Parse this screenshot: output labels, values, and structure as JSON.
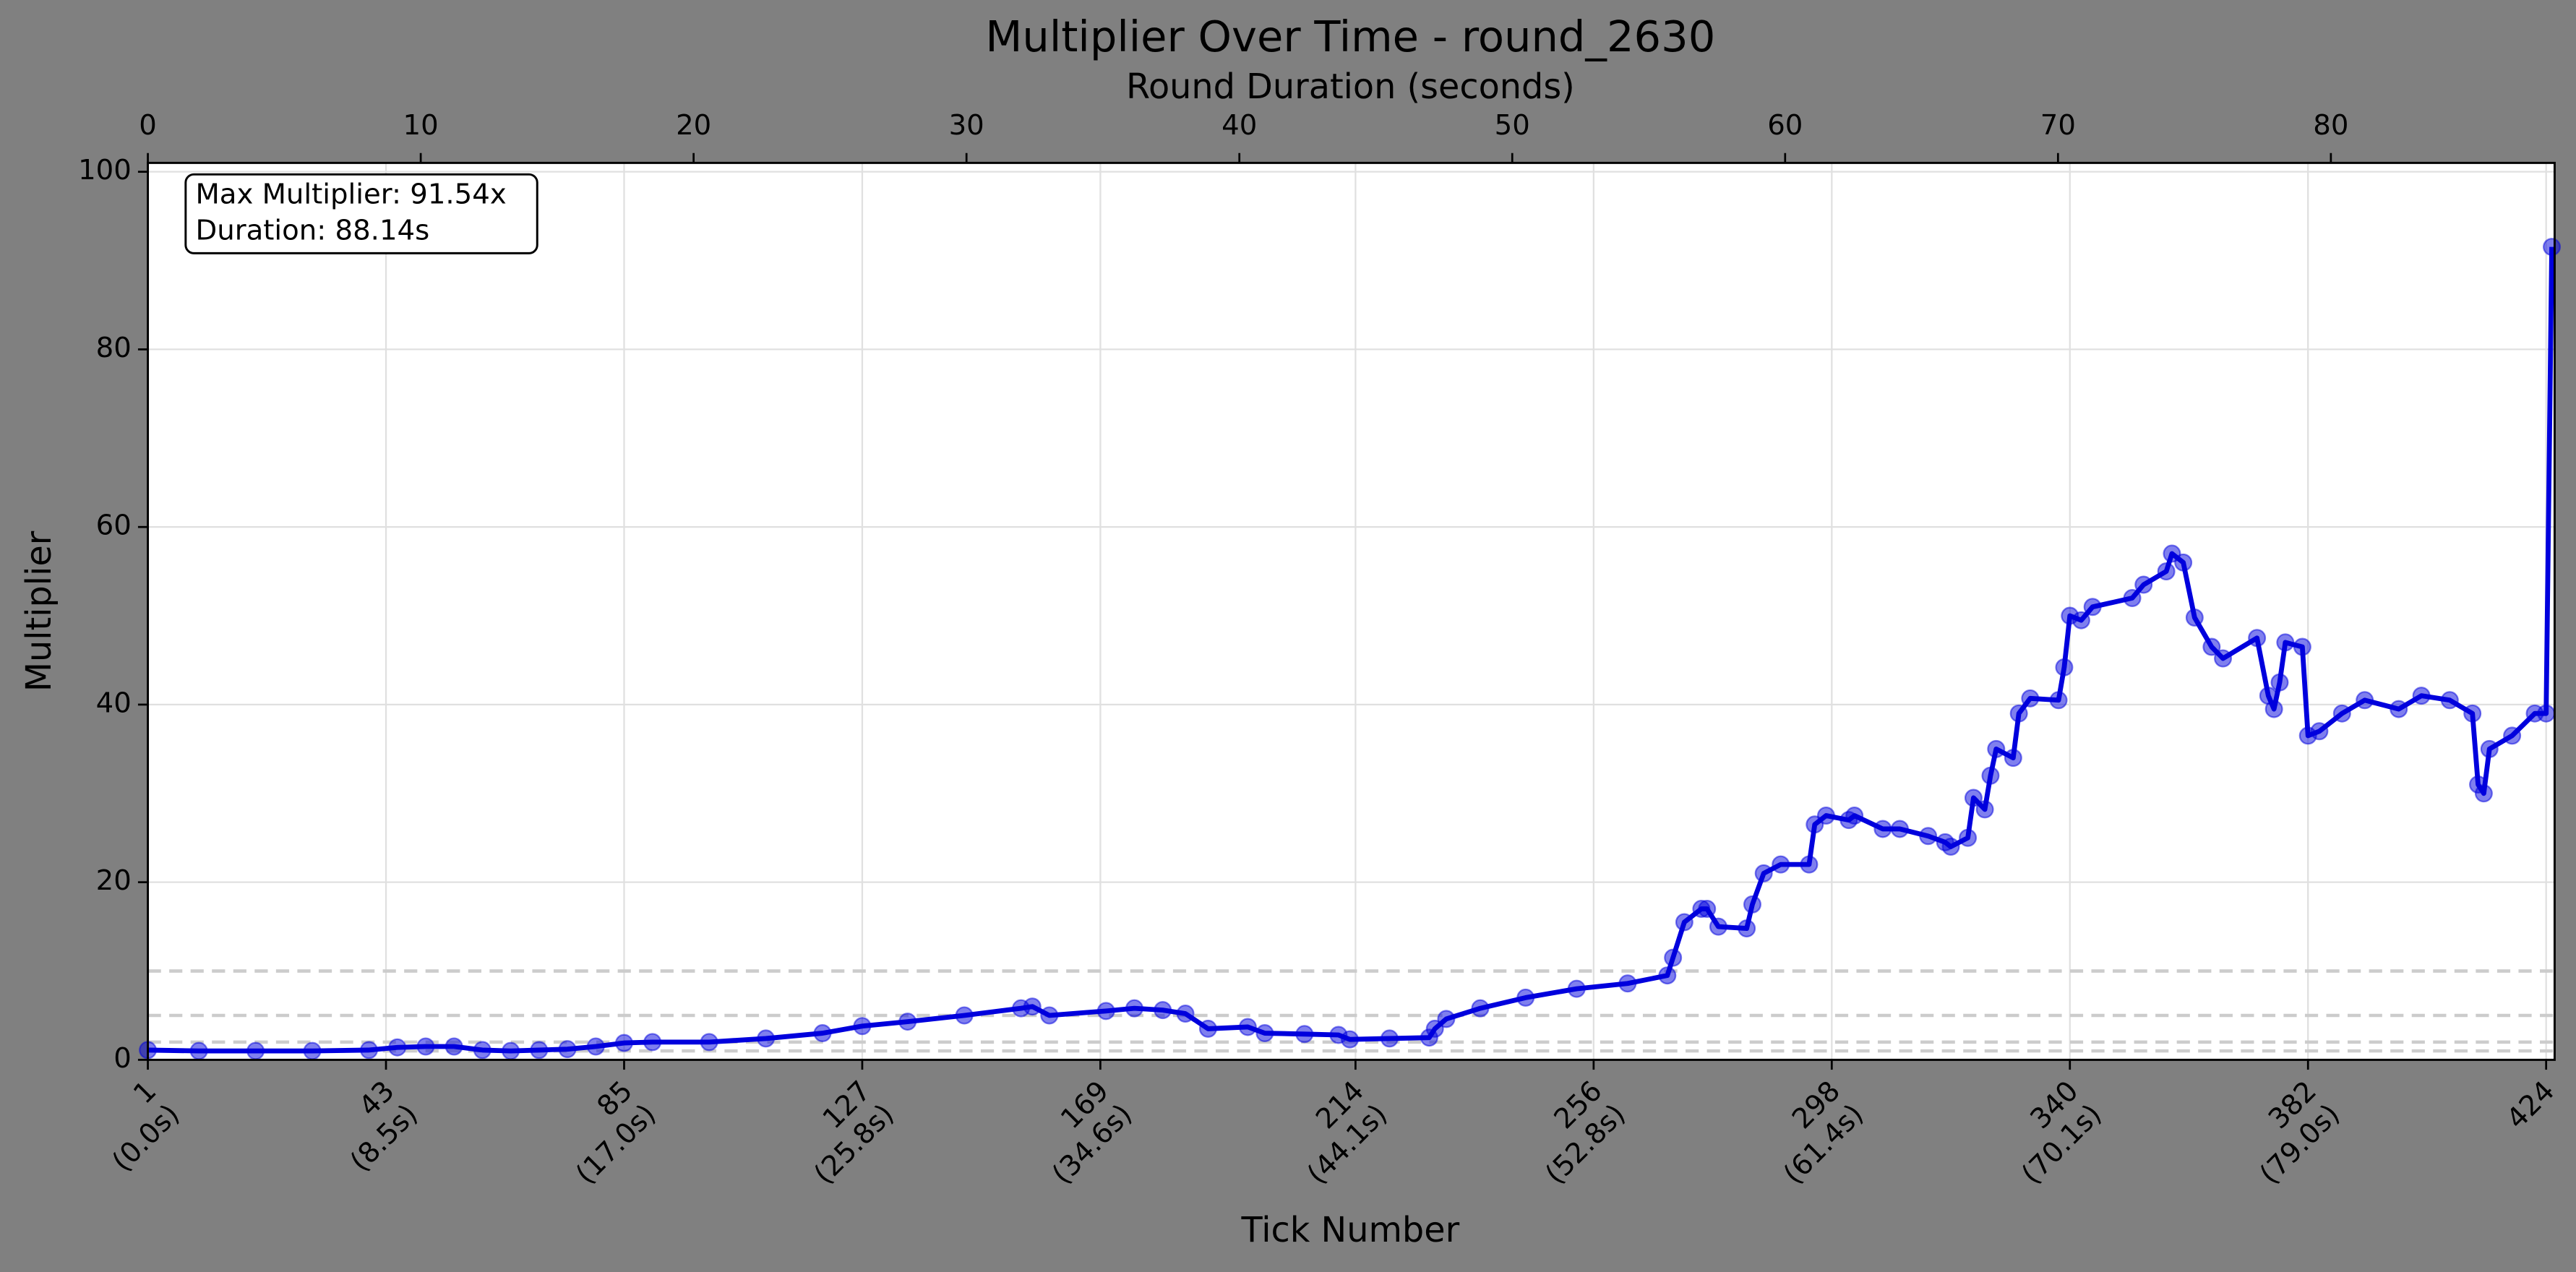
{
  "chart_data": {
    "type": "line",
    "title": "Multiplier Over Time - round_2630",
    "xlabel": "Tick Number",
    "ylabel": "Multiplier",
    "x2label": "Round Duration (seconds)",
    "annotation": [
      "Max Multiplier: 91.54x",
      "Duration: 88.14s"
    ],
    "xlim": [
      1,
      425.5
    ],
    "xticks": [
      {
        "value": 1,
        "label": "1\n(0.0s)"
      },
      {
        "value": 43,
        "label": "43\n(8.5s)"
      },
      {
        "value": 85,
        "label": "85\n(17.0s)"
      },
      {
        "value": 127,
        "label": "127\n(25.8s)"
      },
      {
        "value": 169,
        "label": "169\n(34.6s)"
      },
      {
        "value": 214,
        "label": "214\n(44.1s)"
      },
      {
        "value": 256,
        "label": "256\n(52.8s)"
      },
      {
        "value": 298,
        "label": "298\n(61.4s)"
      },
      {
        "value": 340,
        "label": "340\n(70.1s)"
      },
      {
        "value": 382,
        "label": "382\n(79.0s)"
      },
      {
        "value": 424,
        "label": "424"
      }
    ],
    "x2lim": [
      0,
      88.2
    ],
    "x2ticks": [
      0,
      10,
      20,
      30,
      40,
      50,
      60,
      70,
      80
    ],
    "ylim": [
      0,
      101
    ],
    "yticks": [
      0,
      20,
      40,
      60,
      80,
      100
    ],
    "grid": true,
    "threshold_lines": [
      1,
      2,
      5,
      10
    ],
    "series": [
      {
        "name": "Multiplier",
        "color": "#0000dd",
        "x": [
          1,
          10,
          20,
          30,
          40,
          45,
          50,
          55,
          60,
          65,
          70,
          75,
          80,
          85,
          90,
          100,
          110,
          120,
          127,
          135,
          145,
          155,
          157,
          160,
          170,
          175,
          180,
          184,
          188,
          195,
          198,
          205,
          211,
          213,
          220,
          227,
          228,
          230,
          236,
          244,
          253,
          262,
          269,
          270,
          272,
          275,
          276,
          278,
          283,
          284,
          286,
          289,
          294,
          295,
          297,
          301,
          302,
          307,
          310,
          315,
          318,
          319,
          322,
          323,
          325,
          326,
          327,
          330,
          331,
          333,
          338,
          339,
          340,
          342,
          344,
          351,
          353,
          357,
          358,
          360,
          362,
          365,
          367,
          373,
          375,
          376,
          377,
          378,
          381,
          382,
          384,
          388,
          392,
          398,
          402,
          407,
          411,
          412,
          413,
          414,
          418,
          422,
          424,
          425
        ],
        "values": [
          1.1,
          1.0,
          1.0,
          1.0,
          1.1,
          1.4,
          1.5,
          1.5,
          1.1,
          1.0,
          1.1,
          1.2,
          1.5,
          1.9,
          2.0,
          2.0,
          2.4,
          3.0,
          3.8,
          4.3,
          5.0,
          5.8,
          6.0,
          5.0,
          5.5,
          5.8,
          5.6,
          5.2,
          3.5,
          3.7,
          3.0,
          2.9,
          2.8,
          2.3,
          2.4,
          2.5,
          3.5,
          4.6,
          5.8,
          7.0,
          8.0,
          8.6,
          9.5,
          11.5,
          15.5,
          17.0,
          17.0,
          15.0,
          14.8,
          17.5,
          21.0,
          22.0,
          22.0,
          26.5,
          27.5,
          27.0,
          27.5,
          26.0,
          26.0,
          25.2,
          24.5,
          24.0,
          25.0,
          29.5,
          28.2,
          32.0,
          35.0,
          34.0,
          39.0,
          40.7,
          40.5,
          44.2,
          50.0,
          49.5,
          51.0,
          52.0,
          53.5,
          55.0,
          57.0,
          56.0,
          49.8,
          46.5,
          45.2,
          47.5,
          41.0,
          39.5,
          42.5,
          47.0,
          46.5,
          36.5,
          37.0,
          39.0,
          40.5,
          39.5,
          41.0,
          40.5,
          39.0,
          31.0,
          30.0,
          35.0,
          36.5,
          39.0,
          39.0,
          91.54
        ]
      }
    ]
  }
}
